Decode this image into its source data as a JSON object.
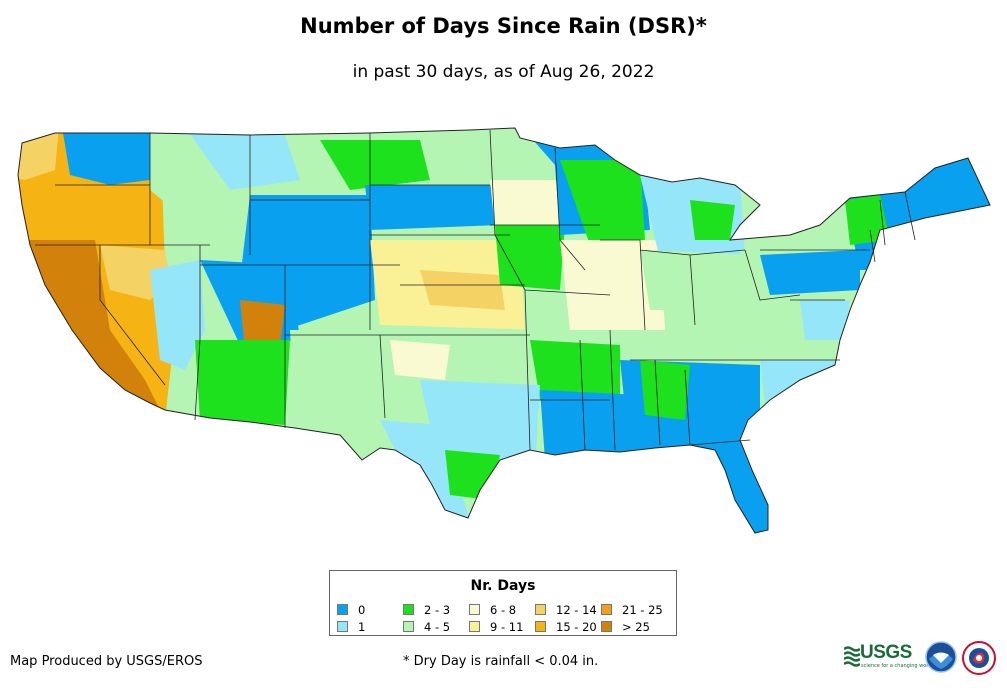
{
  "title": "Number of Days Since Rain (DSR)*",
  "subtitle": "in past 30 days, as of Aug 26, 2022",
  "legend": {
    "title": "Nr. Days",
    "items": [
      {
        "label": "0",
        "color": "#0aa0f0"
      },
      {
        "label": "2 - 3",
        "color": "#1ee11e"
      },
      {
        "label": "6 - 8",
        "color": "#fafad2"
      },
      {
        "label": "12 - 14",
        "color": "#f5d264"
      },
      {
        "label": "21 - 25",
        "color": "#f0a01e"
      },
      {
        "label": "1",
        "color": "#96e6fa"
      },
      {
        "label": "4 - 5",
        "color": "#b4f5b4"
      },
      {
        "label": "9 - 11",
        "color": "#faf096"
      },
      {
        "label": "15 - 20",
        "color": "#f5b414"
      },
      {
        "label": "> 25",
        "color": "#d2820a"
      }
    ]
  },
  "credit": "Map Produced by USGS/EROS",
  "footnote": "* Dry Day is rainfall < 0.04 in.",
  "logos": {
    "usgs_text": "USGS",
    "usgs_tagline": "science for a changing world",
    "noaa_icon": "noaa-logo-icon",
    "nws_icon": "nws-logo-icon"
  }
}
